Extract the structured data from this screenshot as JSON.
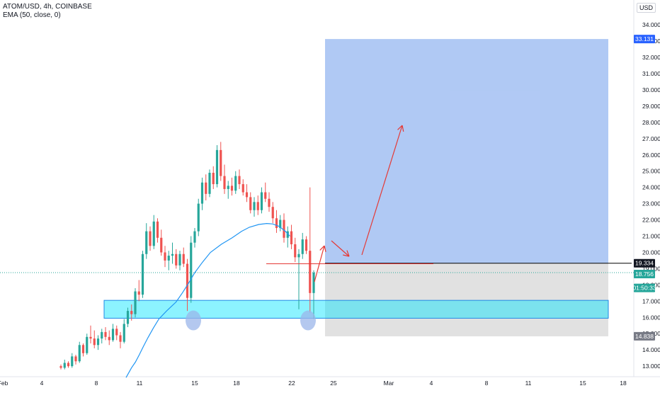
{
  "header": {
    "symbol_line": "ATOM/USD, 4h, COINBASE",
    "indicator_line": "EMA (50, close, 0)",
    "scale_prefix": "3",
    "currency": "USD"
  },
  "colors": {
    "up": "#26a69a",
    "down": "#ef5350",
    "ema": "#2196f3",
    "support_zone": "#00e5ff",
    "target_zone": "#8fb2f0",
    "stop_zone": "#c8c8c8",
    "annotation": "#e53935",
    "ellipse": "#9bb6ea"
  },
  "chart_data": {
    "type": "candlestick",
    "y_axis": {
      "range": [
        12.2,
        34.9
      ],
      "ticks": [
        "13.000",
        "14.000",
        "15.000",
        "16.000",
        "17.000",
        "18.000",
        "19.000",
        "20.000",
        "21.000",
        "22.000",
        "23.000",
        "24.000",
        "25.000",
        "26.000",
        "27.000",
        "28.000",
        "29.000",
        "30.000",
        "31.000",
        "32.000",
        "33.000",
        "34.000"
      ]
    },
    "x_axis": {
      "ticks": [
        "Feb",
        "4",
        "8",
        "11",
        "15",
        "18",
        "22",
        "25",
        "Mar",
        "4",
        "8",
        "11",
        "15",
        "18"
      ]
    },
    "price_labels": [
      {
        "value": 33.131,
        "text": "33.131",
        "kind": "target"
      },
      {
        "value": 19.334,
        "text": "19.334",
        "kind": "entry"
      },
      {
        "value": 18.756,
        "text": "18.756",
        "kind": "last"
      },
      {
        "value": 18.25,
        "text": "01:50:33",
        "kind": "countdown"
      },
      {
        "value": 14.838,
        "text": "14.838",
        "kind": "stop"
      }
    ],
    "position": {
      "target": 33.131,
      "entry": 19.334,
      "stop": 14.838
    },
    "support_zone": {
      "top": 17.05,
      "bottom": 15.95
    },
    "resistance_line": 19.3,
    "last_price": 18.756,
    "candles": [
      [
        13.0,
        13.1,
        12.8,
        12.9
      ],
      [
        12.9,
        13.4,
        12.8,
        13.2
      ],
      [
        13.2,
        13.3,
        12.9,
        13.0
      ],
      [
        13.0,
        13.8,
        12.9,
        13.6
      ],
      [
        13.6,
        13.7,
        13.1,
        13.3
      ],
      [
        13.3,
        14.5,
        13.2,
        14.3
      ],
      [
        14.3,
        14.4,
        13.6,
        13.8
      ],
      [
        13.8,
        15.0,
        13.7,
        14.8
      ],
      [
        14.8,
        15.5,
        14.4,
        14.7
      ],
      [
        14.7,
        15.2,
        14.1,
        14.3
      ],
      [
        14.3,
        14.9,
        14.0,
        14.7
      ],
      [
        14.7,
        15.3,
        14.4,
        15.1
      ],
      [
        15.1,
        15.4,
        14.6,
        14.8
      ],
      [
        14.8,
        15.2,
        14.3,
        14.6
      ],
      [
        14.6,
        15.6,
        14.5,
        15.3
      ],
      [
        15.3,
        15.5,
        14.6,
        14.9
      ],
      [
        14.9,
        15.1,
        14.1,
        14.5
      ],
      [
        14.5,
        15.9,
        14.4,
        15.6
      ],
      [
        15.6,
        16.6,
        15.4,
        16.4
      ],
      [
        16.4,
        16.8,
        15.8,
        16.2
      ],
      [
        16.2,
        17.8,
        16.0,
        17.6
      ],
      [
        17.6,
        18.3,
        17.0,
        17.4
      ],
      [
        17.4,
        20.1,
        17.2,
        19.9
      ],
      [
        19.9,
        21.8,
        19.6,
        21.3
      ],
      [
        21.3,
        21.6,
        20.1,
        20.4
      ],
      [
        20.4,
        22.3,
        20.2,
        21.9
      ],
      [
        21.9,
        22.1,
        20.6,
        20.9
      ],
      [
        20.9,
        21.4,
        19.8,
        20.0
      ],
      [
        20.0,
        20.4,
        19.1,
        19.5
      ],
      [
        19.5,
        20.1,
        18.9,
        19.8
      ],
      [
        19.8,
        20.6,
        19.3,
        19.9
      ],
      [
        19.9,
        20.2,
        19.0,
        19.2
      ],
      [
        19.2,
        20.1,
        18.9,
        19.9
      ],
      [
        19.9,
        20.3,
        19.1,
        19.3
      ],
      [
        19.3,
        19.6,
        16.4,
        17.2
      ],
      [
        17.2,
        21.0,
        16.9,
        20.6
      ],
      [
        20.6,
        21.5,
        20.3,
        21.3
      ],
      [
        21.3,
        23.3,
        21.0,
        23.0
      ],
      [
        23.0,
        24.6,
        22.6,
        24.3
      ],
      [
        24.3,
        24.8,
        23.2,
        23.6
      ],
      [
        23.6,
        25.1,
        23.4,
        24.9
      ],
      [
        24.9,
        25.3,
        23.9,
        24.2
      ],
      [
        24.2,
        26.6,
        24.0,
        26.3
      ],
      [
        26.3,
        26.8,
        24.4,
        24.7
      ],
      [
        24.7,
        25.4,
        23.6,
        23.9
      ],
      [
        23.9,
        24.4,
        23.3,
        24.1
      ],
      [
        24.1,
        24.6,
        23.5,
        23.8
      ],
      [
        23.8,
        25.0,
        23.6,
        24.7
      ],
      [
        24.7,
        25.1,
        23.9,
        24.2
      ],
      [
        24.2,
        24.5,
        23.5,
        23.7
      ],
      [
        23.7,
        24.2,
        23.1,
        23.4
      ],
      [
        23.4,
        23.7,
        22.4,
        22.6
      ],
      [
        22.6,
        23.4,
        22.2,
        23.1
      ],
      [
        23.1,
        23.5,
        22.3,
        22.6
      ],
      [
        22.6,
        24.0,
        22.4,
        23.7
      ],
      [
        23.7,
        24.3,
        23.1,
        23.3
      ],
      [
        23.3,
        23.7,
        22.5,
        22.8
      ],
      [
        22.8,
        23.1,
        21.8,
        22.1
      ],
      [
        22.1,
        22.6,
        21.2,
        21.5
      ],
      [
        21.5,
        22.3,
        21.3,
        22.0
      ],
      [
        22.0,
        22.4,
        20.6,
        20.9
      ],
      [
        20.9,
        21.6,
        20.3,
        21.3
      ],
      [
        21.3,
        21.7,
        20.2,
        20.5
      ],
      [
        20.5,
        20.9,
        19.4,
        19.7
      ],
      [
        19.7,
        20.2,
        16.5,
        19.9
      ],
      [
        19.9,
        21.2,
        19.6,
        20.8
      ],
      [
        20.8,
        21.0,
        19.9,
        20.1
      ],
      [
        20.1,
        24.0,
        16.3,
        17.5
      ],
      [
        17.5,
        18.9,
        15.9,
        18.756
      ]
    ],
    "ema": [
      [
        12.2,
        12.3
      ],
      [
        12.9,
        12.9
      ],
      [
        13.4,
        13.25
      ],
      [
        13.9,
        13.7
      ],
      [
        14.4,
        14.2
      ],
      [
        15.0,
        14.75
      ],
      [
        15.7,
        15.35
      ],
      [
        16.4,
        15.9
      ],
      [
        17.4,
        16.4
      ],
      [
        18.6,
        16.95
      ],
      [
        19.4,
        17.5
      ],
      [
        20.2,
        18.1
      ],
      [
        21.0,
        18.75
      ],
      [
        22.0,
        19.4
      ],
      [
        23.0,
        20.0
      ],
      [
        24.4,
        20.5
      ],
      [
        25.8,
        20.9
      ],
      [
        27.0,
        21.3
      ],
      [
        28.0,
        21.55
      ],
      [
        29.2,
        21.72
      ],
      [
        30.2,
        21.78
      ],
      [
        31.0,
        21.75
      ],
      [
        31.8,
        21.6
      ],
      [
        32.6,
        21.3
      ],
      [
        33.2,
        21.0
      ]
    ],
    "annotations": {
      "arrows": [
        {
          "from": [
            1.0,
            18.2
          ],
          "to": [
            2.3,
            20.3
          ]
        },
        {
          "from": [
            4.4,
            20.3
          ],
          "to": [
            5.6,
            19.6
          ]
        },
        {
          "from": [
            7.5,
            19.5
          ],
          "to": [
            14.3,
            27.8
          ]
        }
      ]
    }
  }
}
